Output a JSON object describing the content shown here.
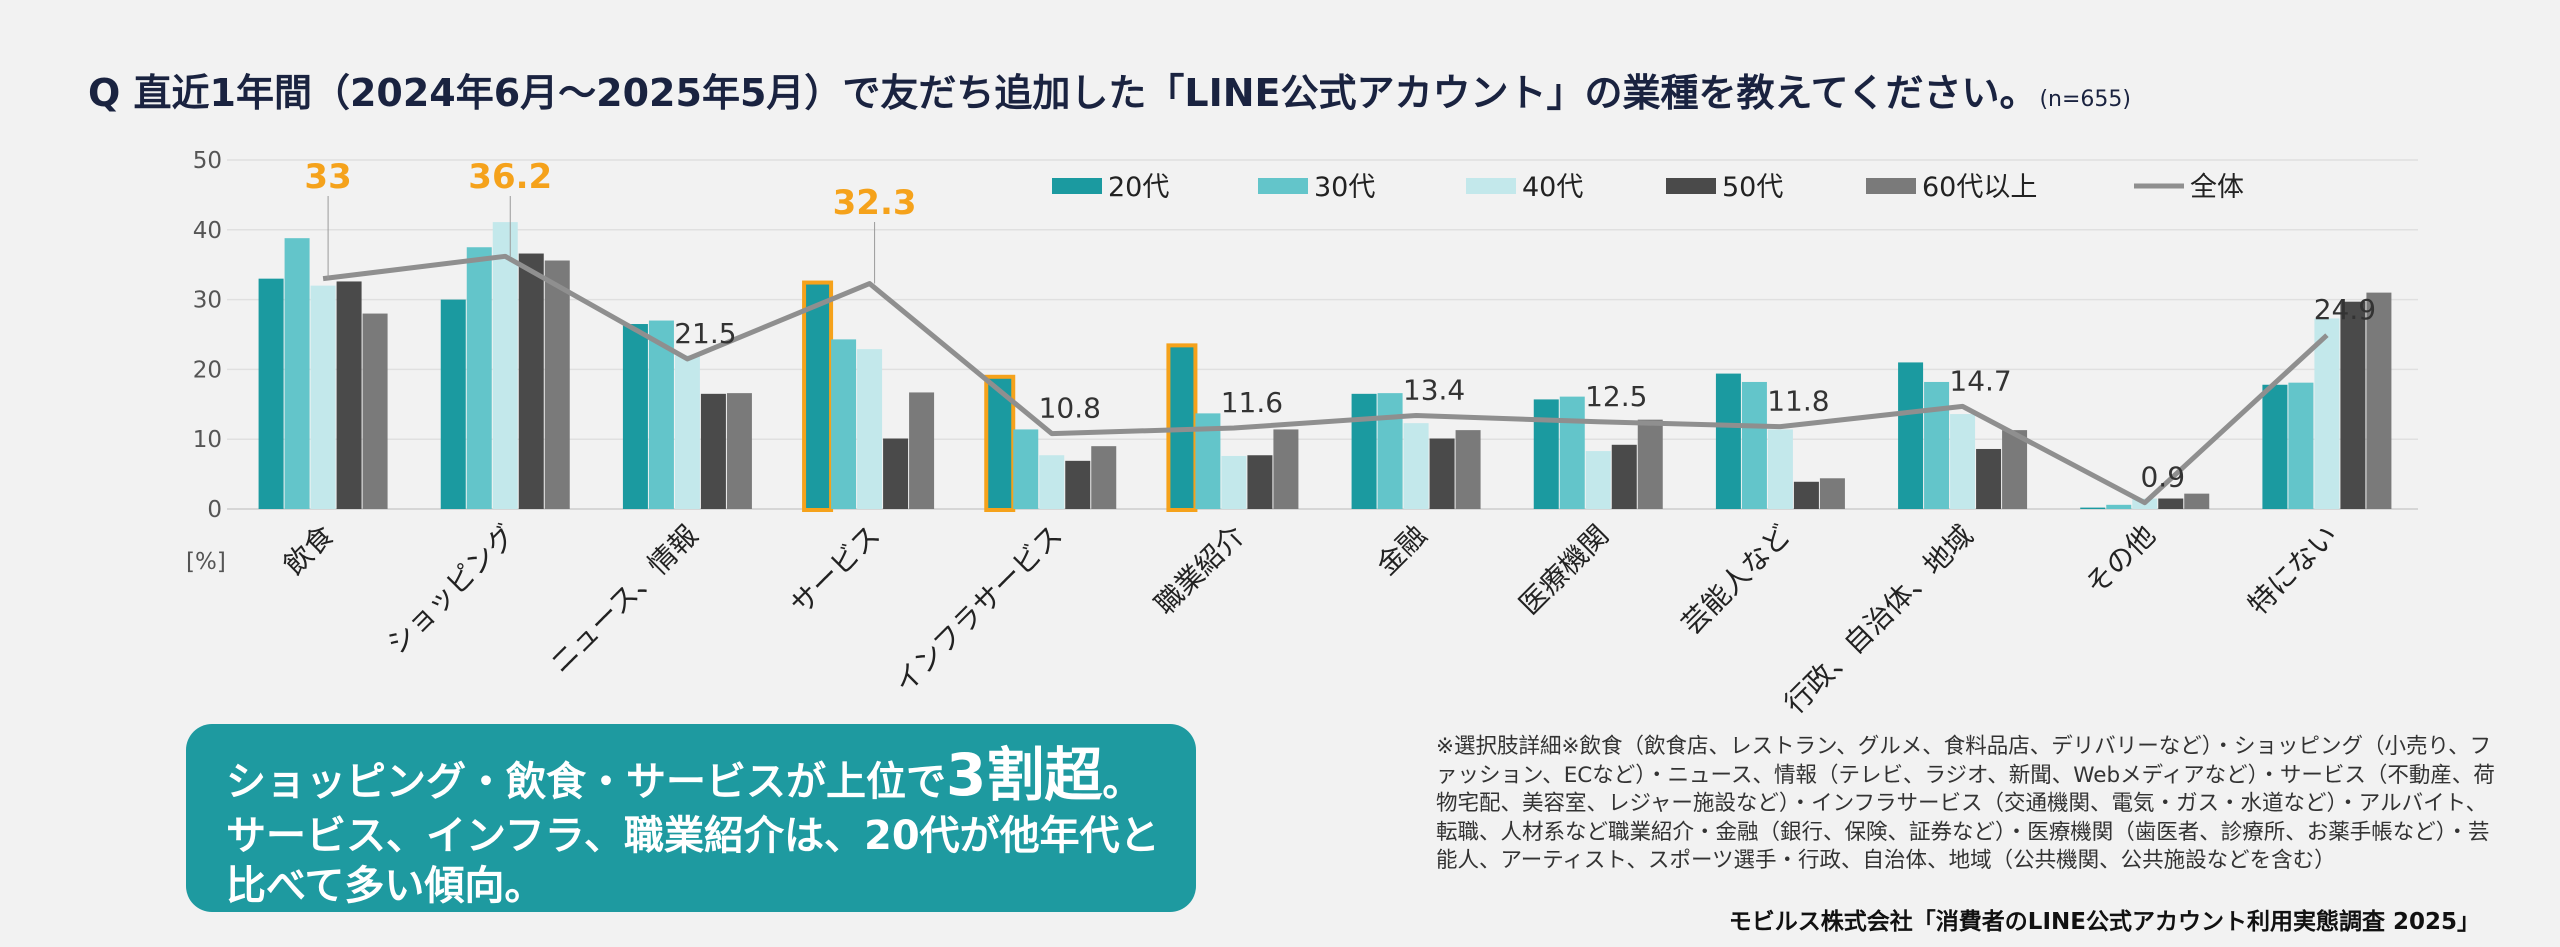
{
  "title": {
    "question": "Q 直近1年間（2024年6月～2025年5月）で友だち追加した「LINE公式アカウント」の業種を教えてください。",
    "n": "(n=655)"
  },
  "chart_data": {
    "type": "bar",
    "title": "Q 直近1年間（2024年6月～2025年5月）で友だち追加した「LINE公式アカウント」の業種を教えてください。",
    "ylabel": "[%]",
    "ylim": [
      0,
      50
    ],
    "yticks": [
      0,
      10,
      20,
      30,
      40,
      50
    ],
    "grid": true,
    "legend_position": "top-right",
    "categories": [
      "飲食",
      "ショッピング",
      "ニュース、情報",
      "サービス",
      "インフラサービス",
      "職業紹介",
      "金融",
      "医療機関",
      "芸能人など",
      "行政、自治体、地域",
      "その他",
      "特にない"
    ],
    "series": [
      {
        "name": "20代",
        "color": "#1b9aa0",
        "values": [
          33.0,
          30.0,
          26.5,
          32.3,
          18.8,
          23.3,
          16.5,
          15.7,
          19.4,
          21.0,
          0.2,
          17.8
        ]
      },
      {
        "name": "30代",
        "color": "#63c5ca",
        "values": [
          38.8,
          37.5,
          27.0,
          24.3,
          11.4,
          13.7,
          16.6,
          16.1,
          18.2,
          18.2,
          0.6,
          18.1
        ]
      },
      {
        "name": "40代",
        "color": "#c3e8eb",
        "values": [
          32.0,
          41.1,
          22.0,
          22.9,
          7.7,
          7.6,
          12.3,
          8.3,
          11.4,
          13.6,
          1.5,
          27.3
        ]
      },
      {
        "name": "50代",
        "color": "#4a4a4a",
        "values": [
          32.6,
          36.6,
          16.5,
          10.1,
          6.9,
          7.7,
          10.1,
          9.2,
          3.9,
          8.6,
          1.5,
          29.7
        ]
      },
      {
        "name": "60代以上",
        "color": "#7a7a7a",
        "values": [
          28.0,
          35.6,
          16.6,
          16.7,
          9.0,
          11.4,
          11.3,
          12.8,
          4.4,
          11.3,
          2.2,
          31.0
        ]
      }
    ],
    "overall": {
      "name": "全体",
      "color": "#8f8f8f",
      "values": [
        33,
        36.2,
        21.5,
        32.3,
        10.8,
        11.6,
        13.4,
        12.5,
        11.8,
        14.7,
        0.9,
        24.9
      ]
    },
    "overall_labels": [
      "33",
      "36.2",
      "21.5",
      "32.3",
      "10.8",
      "11.6",
      "13.4",
      "12.5",
      "11.8",
      "14.7",
      "0.9",
      "24.9"
    ],
    "highlighted_labels": [
      0,
      1,
      3
    ],
    "highlighted_bars": [
      3,
      4,
      5
    ],
    "highlight_color": "#f5a21b"
  },
  "summary": {
    "line1_a": "ショッピング・飲食・サービスが上位で",
    "line1_big": "3割超",
    "line1_b": "。",
    "line2": "サービス、インフラ、職業紹介は、20代が他年代と",
    "line3": "比べて多い傾向。"
  },
  "note": "※選択肢詳細※飲食（飲食店、レストラン、グルメ、食料品店、デリバリーなど）・ショッピング（小売り、ファッション、ECなど）・ニュース、情報（テレビ、ラジオ、新聞、Webメディアなど）・サービス（不動産、荷物宅配、美容室、レジャー施設など）・インフラサービス（交通機関、電気・ガス・水道など）・アルバイト、転職、人材系など職業紹介・金融（銀行、保険、証券など）・医療機関（歯医者、診療所、お薬手帳など）・芸能人、アーティスト、スポーツ選手・行政、自治体、地域（公共機関、公共施設などを含む）",
  "source": "モビルス株式会社「消費者のLINE公式アカウント利用実態調査 2025」"
}
